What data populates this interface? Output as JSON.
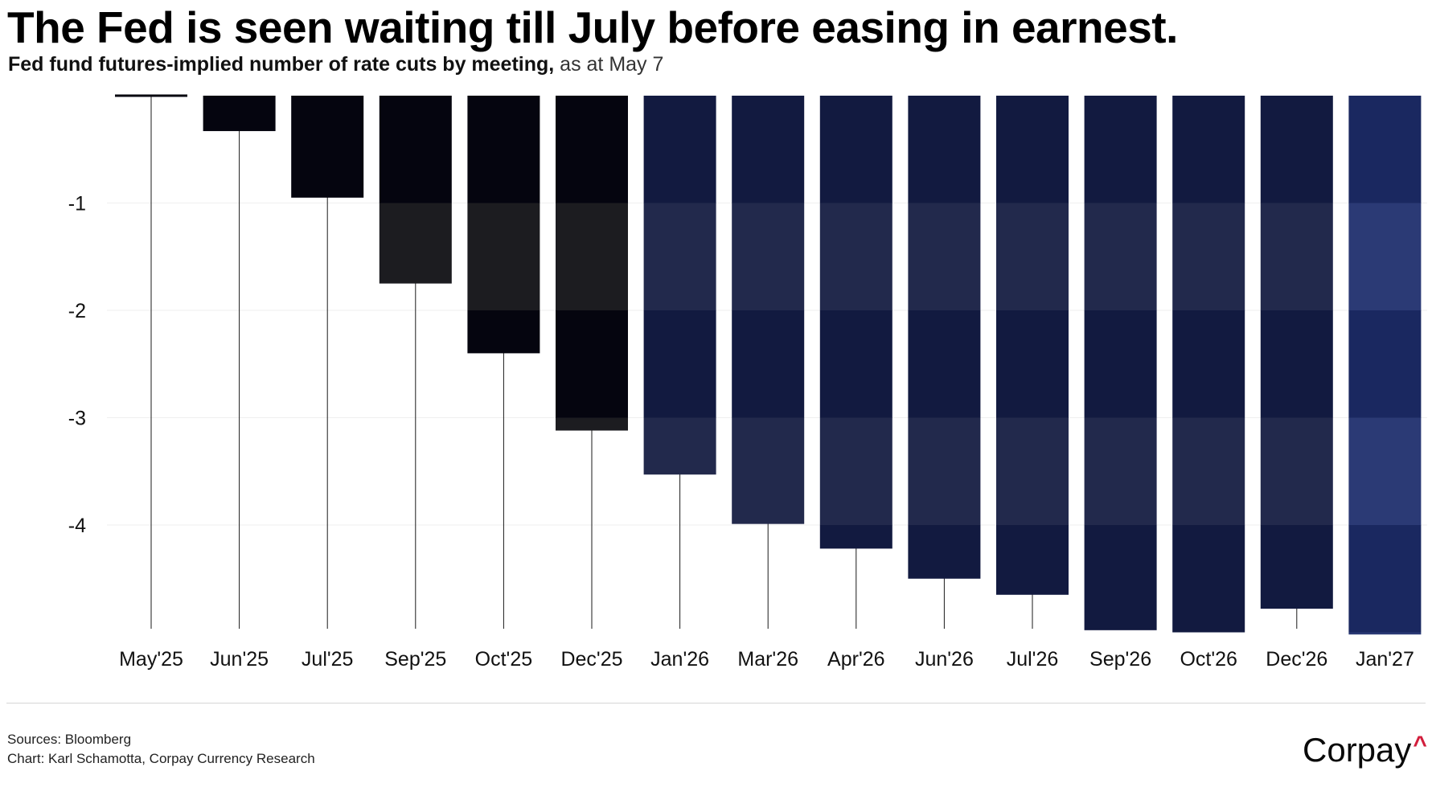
{
  "header": {
    "title": "The Fed is seen waiting till July before easing in earnest.",
    "subtitle_strong": "Fed fund futures-implied number of rate cuts by meeting,",
    "subtitle_light": " as at May 7"
  },
  "footer": {
    "sources": "Sources: Bloomberg",
    "chart_credit": "Chart: Karl Schamotta, Corpay Currency Research",
    "logo_text": "Corpay",
    "logo_mark": "^"
  },
  "colors": {
    "dark_bar": "#05050f",
    "dark_band": "#1c1c20",
    "navy_bar": "#121a40",
    "navy_band": "#22294c",
    "last_bar": "#1a2860",
    "last_band": "#2b3a75",
    "logo_accent": "#d21e3c"
  },
  "chart_data": {
    "type": "bar",
    "categories": [
      "May'25",
      "Jun'25",
      "Jul'25",
      "Sep'25",
      "Oct'25",
      "Dec'25",
      "Jan'26",
      "Mar'26",
      "Apr'26",
      "Jun'26",
      "Jul'26",
      "Sep'26",
      "Oct'26",
      "Dec'26",
      "Jan'27"
    ],
    "values": [
      0,
      -0.33,
      -0.95,
      -1.75,
      -2.4,
      -3.12,
      -3.53,
      -3.99,
      -4.22,
      -4.5,
      -4.65,
      -4.98,
      -5.0,
      -4.78,
      -5.02
    ],
    "y_ticks": [
      -1,
      -2,
      -3,
      -4
    ],
    "y_tick_labels": [
      "-1",
      "-2",
      "-3",
      "-4"
    ],
    "ylim": [
      -5.0,
      0
    ],
    "title": "The Fed is seen waiting till July before easing in earnest.",
    "xlabel": "",
    "ylabel": "",
    "grid": true,
    "legend": "none"
  }
}
